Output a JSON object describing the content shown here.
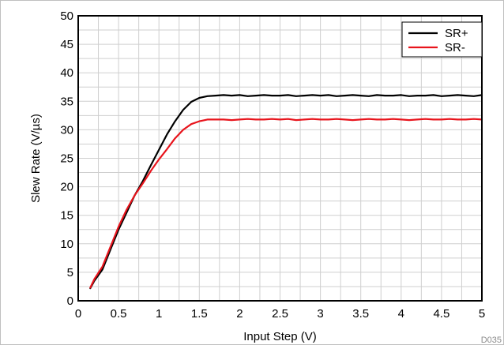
{
  "figure_id": "D035",
  "chart_data": {
    "type": "line",
    "xlabel": "Input Step (V)",
    "ylabel": "Slew Rate (V/µs)",
    "xlim": [
      0,
      5
    ],
    "ylim": [
      0,
      50
    ],
    "x_ticks": [
      "0",
      "0.5",
      "1",
      "1.5",
      "2",
      "2.5",
      "3",
      "3.5",
      "4",
      "4.5",
      "5"
    ],
    "y_ticks": [
      "0",
      "5",
      "10",
      "15",
      "20",
      "25",
      "30",
      "35",
      "40",
      "45",
      "50"
    ],
    "grid": true,
    "legend_position": "top-right",
    "series": [
      {
        "name": "SR+",
        "color": "#000000",
        "x": [
          0.15,
          0.2,
          0.3,
          0.4,
          0.5,
          0.6,
          0.7,
          0.8,
          0.9,
          1.0,
          1.1,
          1.2,
          1.3,
          1.4,
          1.5,
          1.6,
          1.7,
          1.8,
          1.9,
          2.0,
          2.1,
          2.2,
          2.3,
          2.4,
          2.5,
          2.6,
          2.7,
          2.8,
          2.9,
          3.0,
          3.1,
          3.2,
          3.3,
          3.4,
          3.5,
          3.6,
          3.7,
          3.8,
          3.9,
          4.0,
          4.1,
          4.2,
          4.3,
          4.4,
          4.5,
          4.6,
          4.7,
          4.8,
          4.9,
          5.0
        ],
        "y": [
          2.2,
          3.5,
          5.5,
          9.0,
          12.5,
          15.5,
          18.5,
          21.0,
          23.8,
          26.5,
          29.2,
          31.5,
          33.5,
          34.9,
          35.6,
          35.9,
          36.0,
          36.1,
          36.0,
          36.1,
          35.9,
          36.0,
          36.1,
          36.0,
          36.0,
          36.1,
          35.9,
          36.0,
          36.1,
          36.0,
          36.1,
          35.9,
          36.0,
          36.1,
          36.0,
          35.9,
          36.1,
          36.0,
          36.0,
          36.1,
          35.9,
          36.0,
          36.0,
          36.1,
          35.9,
          36.0,
          36.1,
          36.0,
          35.9,
          36.1
        ]
      },
      {
        "name": "SR-",
        "color": "#e8141c",
        "x": [
          0.15,
          0.2,
          0.3,
          0.4,
          0.5,
          0.6,
          0.7,
          0.8,
          0.9,
          1.0,
          1.1,
          1.2,
          1.3,
          1.4,
          1.5,
          1.6,
          1.7,
          1.8,
          1.9,
          2.0,
          2.1,
          2.2,
          2.3,
          2.4,
          2.5,
          2.6,
          2.7,
          2.8,
          2.9,
          3.0,
          3.1,
          3.2,
          3.3,
          3.4,
          3.5,
          3.6,
          3.7,
          3.8,
          3.9,
          4.0,
          4.1,
          4.2,
          4.3,
          4.4,
          4.5,
          4.6,
          4.7,
          4.8,
          4.9,
          5.0
        ],
        "y": [
          2.3,
          3.8,
          6.0,
          9.5,
          13.0,
          16.0,
          18.5,
          20.6,
          22.8,
          24.8,
          26.6,
          28.5,
          30.0,
          31.0,
          31.5,
          31.8,
          31.8,
          31.8,
          31.7,
          31.8,
          31.9,
          31.8,
          31.8,
          31.9,
          31.8,
          31.9,
          31.7,
          31.8,
          31.9,
          31.8,
          31.8,
          31.9,
          31.8,
          31.7,
          31.8,
          31.9,
          31.8,
          31.8,
          31.9,
          31.8,
          31.7,
          31.8,
          31.9,
          31.8,
          31.8,
          31.9,
          31.8,
          31.8,
          31.9,
          31.8
        ]
      }
    ]
  }
}
